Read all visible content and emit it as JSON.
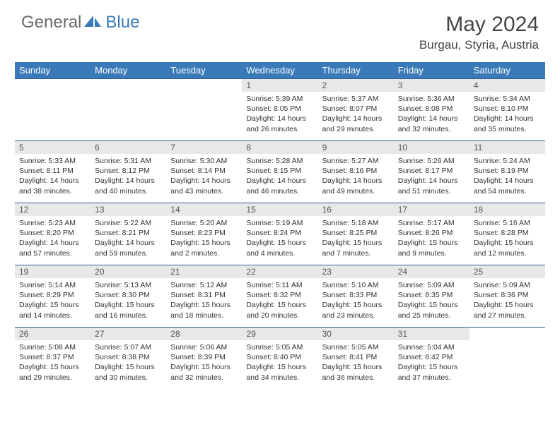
{
  "brand": {
    "part1": "General",
    "part2": "Blue"
  },
  "title": "May 2024",
  "location": "Burgau, Styria, Austria",
  "colors": {
    "header_bg": "#3a7ab8",
    "border": "#2f5f8f",
    "daynum_bg": "#e8e8e8",
    "text": "#333333",
    "brand_gray": "#6a6a6a",
    "brand_blue": "#3a7ab8"
  },
  "weekdays": [
    "Sunday",
    "Monday",
    "Tuesday",
    "Wednesday",
    "Thursday",
    "Friday",
    "Saturday"
  ],
  "grid": {
    "start_day_index": 3,
    "days_in_month": 31,
    "rows": 5
  },
  "days": {
    "1": {
      "sunrise": "5:39 AM",
      "sunset": "8:05 PM",
      "daylight": "14 hours and 26 minutes."
    },
    "2": {
      "sunrise": "5:37 AM",
      "sunset": "8:07 PM",
      "daylight": "14 hours and 29 minutes."
    },
    "3": {
      "sunrise": "5:36 AM",
      "sunset": "8:08 PM",
      "daylight": "14 hours and 32 minutes."
    },
    "4": {
      "sunrise": "5:34 AM",
      "sunset": "8:10 PM",
      "daylight": "14 hours and 35 minutes."
    },
    "5": {
      "sunrise": "5:33 AM",
      "sunset": "8:11 PM",
      "daylight": "14 hours and 38 minutes."
    },
    "6": {
      "sunrise": "5:31 AM",
      "sunset": "8:12 PM",
      "daylight": "14 hours and 40 minutes."
    },
    "7": {
      "sunrise": "5:30 AM",
      "sunset": "8:14 PM",
      "daylight": "14 hours and 43 minutes."
    },
    "8": {
      "sunrise": "5:28 AM",
      "sunset": "8:15 PM",
      "daylight": "14 hours and 46 minutes."
    },
    "9": {
      "sunrise": "5:27 AM",
      "sunset": "8:16 PM",
      "daylight": "14 hours and 49 minutes."
    },
    "10": {
      "sunrise": "5:26 AM",
      "sunset": "8:17 PM",
      "daylight": "14 hours and 51 minutes."
    },
    "11": {
      "sunrise": "5:24 AM",
      "sunset": "8:19 PM",
      "daylight": "14 hours and 54 minutes."
    },
    "12": {
      "sunrise": "5:23 AM",
      "sunset": "8:20 PM",
      "daylight": "14 hours and 57 minutes."
    },
    "13": {
      "sunrise": "5:22 AM",
      "sunset": "8:21 PM",
      "daylight": "14 hours and 59 minutes."
    },
    "14": {
      "sunrise": "5:20 AM",
      "sunset": "8:23 PM",
      "daylight": "15 hours and 2 minutes."
    },
    "15": {
      "sunrise": "5:19 AM",
      "sunset": "8:24 PM",
      "daylight": "15 hours and 4 minutes."
    },
    "16": {
      "sunrise": "5:18 AM",
      "sunset": "8:25 PM",
      "daylight": "15 hours and 7 minutes."
    },
    "17": {
      "sunrise": "5:17 AM",
      "sunset": "8:26 PM",
      "daylight": "15 hours and 9 minutes."
    },
    "18": {
      "sunrise": "5:16 AM",
      "sunset": "8:28 PM",
      "daylight": "15 hours and 12 minutes."
    },
    "19": {
      "sunrise": "5:14 AM",
      "sunset": "8:29 PM",
      "daylight": "15 hours and 14 minutes."
    },
    "20": {
      "sunrise": "5:13 AM",
      "sunset": "8:30 PM",
      "daylight": "15 hours and 16 minutes."
    },
    "21": {
      "sunrise": "5:12 AM",
      "sunset": "8:31 PM",
      "daylight": "15 hours and 18 minutes."
    },
    "22": {
      "sunrise": "5:11 AM",
      "sunset": "8:32 PM",
      "daylight": "15 hours and 20 minutes."
    },
    "23": {
      "sunrise": "5:10 AM",
      "sunset": "8:33 PM",
      "daylight": "15 hours and 23 minutes."
    },
    "24": {
      "sunrise": "5:09 AM",
      "sunset": "8:35 PM",
      "daylight": "15 hours and 25 minutes."
    },
    "25": {
      "sunrise": "5:09 AM",
      "sunset": "8:36 PM",
      "daylight": "15 hours and 27 minutes."
    },
    "26": {
      "sunrise": "5:08 AM",
      "sunset": "8:37 PM",
      "daylight": "15 hours and 29 minutes."
    },
    "27": {
      "sunrise": "5:07 AM",
      "sunset": "8:38 PM",
      "daylight": "15 hours and 30 minutes."
    },
    "28": {
      "sunrise": "5:06 AM",
      "sunset": "8:39 PM",
      "daylight": "15 hours and 32 minutes."
    },
    "29": {
      "sunrise": "5:05 AM",
      "sunset": "8:40 PM",
      "daylight": "15 hours and 34 minutes."
    },
    "30": {
      "sunrise": "5:05 AM",
      "sunset": "8:41 PM",
      "daylight": "15 hours and 36 minutes."
    },
    "31": {
      "sunrise": "5:04 AM",
      "sunset": "8:42 PM",
      "daylight": "15 hours and 37 minutes."
    }
  },
  "labels": {
    "sunrise": "Sunrise: ",
    "sunset": "Sunset: ",
    "daylight": "Daylight: "
  }
}
